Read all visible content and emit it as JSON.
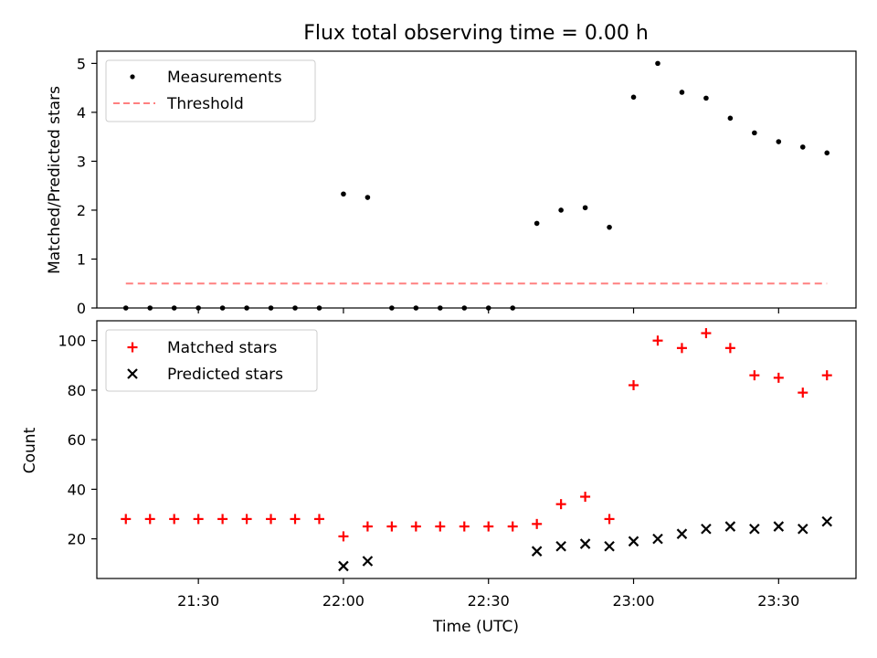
{
  "chart_data": [
    {
      "type": "scatter",
      "title": "Flux total observing time = 0.00 h",
      "xlabel": "",
      "ylabel": "Matched/Predicted stars",
      "ylim": [
        0,
        5.25
      ],
      "yticks": [
        "0",
        "1",
        "2",
        "3",
        "4",
        "5"
      ],
      "legend": "top-left",
      "x": [
        "21:15",
        "21:20",
        "21:25",
        "21:30",
        "21:35",
        "21:40",
        "21:45",
        "21:50",
        "21:55",
        "22:00",
        "22:05",
        "22:10",
        "22:15",
        "22:20",
        "22:25",
        "22:30",
        "22:35",
        "22:40",
        "22:45",
        "22:50",
        "22:55",
        "23:00",
        "23:05",
        "23:10",
        "23:15",
        "23:20",
        "23:25",
        "23:30",
        "23:35",
        "23:40"
      ],
      "series": [
        {
          "name": "Measurements",
          "color": "#000000",
          "marker": "dot",
          "values": [
            0,
            0,
            0,
            0,
            0,
            0,
            0,
            0,
            0,
            2.33,
            2.26,
            0,
            0,
            0,
            0,
            0,
            0,
            1.73,
            2.0,
            2.05,
            1.65,
            4.31,
            5.0,
            4.41,
            4.29,
            3.88,
            3.58,
            3.4,
            3.29,
            3.17
          ]
        },
        {
          "name": "Threshold",
          "color": "#ff8080",
          "marker": "dashed-line",
          "values": [
            0.5,
            0.5
          ]
        }
      ]
    },
    {
      "type": "scatter",
      "title": "",
      "xlabel": "Time (UTC)",
      "ylabel": "Count",
      "ylim": [
        4,
        108
      ],
      "yticks": [
        "20",
        "40",
        "60",
        "80",
        "100"
      ],
      "xticks": [
        "21:30",
        "22:00",
        "22:30",
        "23:00",
        "23:30"
      ],
      "legend": "top-left",
      "series": [
        {
          "name": "Matched stars",
          "color": "#ff0000",
          "marker": "plus",
          "x": [
            "21:15",
            "21:20",
            "21:25",
            "21:30",
            "21:35",
            "21:40",
            "21:45",
            "21:50",
            "21:55",
            "22:00",
            "22:05",
            "22:10",
            "22:15",
            "22:20",
            "22:25",
            "22:30",
            "22:35",
            "22:40",
            "22:45",
            "22:50",
            "22:55",
            "23:00",
            "23:05",
            "23:10",
            "23:15",
            "23:20",
            "23:25",
            "23:30",
            "23:35",
            "23:40"
          ],
          "values": [
            28,
            28,
            28,
            28,
            28,
            28,
            28,
            28,
            28,
            21,
            25,
            25,
            25,
            25,
            25,
            25,
            25,
            26,
            34,
            37,
            28,
            82,
            100,
            97,
            103,
            97,
            86,
            85,
            79,
            86
          ]
        },
        {
          "name": "Predicted stars",
          "color": "#000000",
          "marker": "x",
          "x": [
            "22:00",
            "22:05",
            "22:40",
            "22:45",
            "22:50",
            "22:55",
            "23:00",
            "23:05",
            "23:10",
            "23:15",
            "23:20",
            "23:25",
            "23:30",
            "23:35",
            "23:40"
          ],
          "values": [
            9,
            11,
            15,
            17,
            18,
            17,
            19,
            20,
            22,
            24,
            25,
            24,
            25,
            24,
            27
          ]
        }
      ]
    }
  ]
}
